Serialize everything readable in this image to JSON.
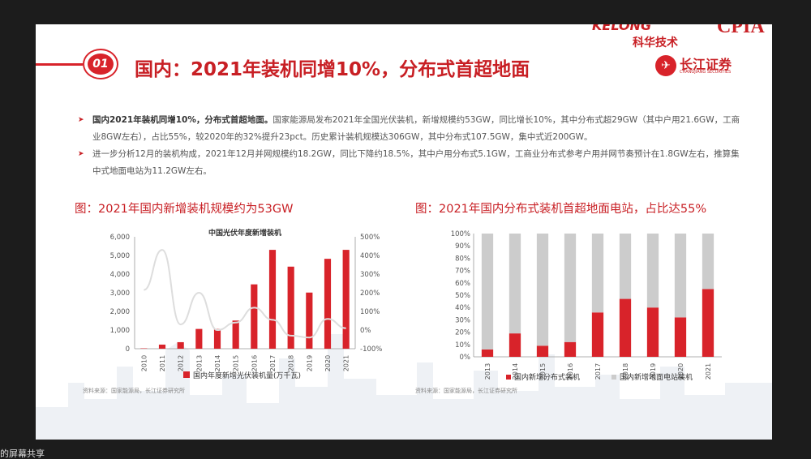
{
  "slide": {
    "section_no": "01",
    "title": "国内：2021年装机同增10%，分布式首超地面",
    "logos": {
      "kelong_en": "KELONG",
      "kelong_cn": "科华技术",
      "cpia": "CPIA",
      "cj_cn": "长江证券",
      "cj_en": "CHANGJIANG SECURITIES"
    },
    "bullets": [
      {
        "bold": "国内2021年装机同增10%，分布式首超地面。",
        "text": "国家能源局发布2021年全国光伏装机，新增规模约53GW，同比增长10%，其中分布式超29GW（其中户用21.6GW，工商业8GW左右），占比55%，较2020年的32%提升23pct。历史累计装机规模达306GW，其中分布式107.5GW，集中式近200GW。"
      },
      {
        "bold": "",
        "text": "进一步分析12月的装机构成，2021年12月并网规模约18.2GW，同比下降约18.5%，其中户用分布式5.1GW，工商业分布式参考户用并网节奏预计在1.8GW左右，推算集中式地面电站为11.2GW左右。"
      }
    ],
    "chart1_caption": "图：2021年国内新增装机规模约为53GW",
    "chart2_caption": "图：2021年国内分布式装机首超地面电站，占比达55%",
    "source1": "资料来源：国家能源局，长江证券研究所",
    "source2": "资料来源：国家能源局，长江证券研究所"
  },
  "bottom_text": "的屏幕共享",
  "chart_data": [
    {
      "type": "bar",
      "title": "中国光伏年度新增装机",
      "categories": [
        "2010",
        "2011",
        "2012",
        "2013",
        "2014",
        "2015",
        "2016",
        "2017",
        "2018",
        "2019",
        "2020",
        "2021"
      ],
      "series": [
        {
          "name": "国内年度新增光伏装机量(万千瓦)",
          "values": [
            20,
            220,
            350,
            1060,
            1060,
            1510,
            3450,
            5300,
            4400,
            3010,
            4820,
            5300
          ],
          "color": "#d8232a",
          "axis": "left"
        },
        {
          "name": "",
          "values": [
            215,
            430,
            30,
            200,
            0,
            40,
            120,
            55,
            -30,
            -40,
            60,
            10
          ],
          "color": "#dddddd",
          "axis": "right",
          "kind": "line"
        }
      ],
      "ylim": [
        0,
        6000
      ],
      "yticks": [
        "0",
        "1,000",
        "2,000",
        "3,000",
        "4,000",
        "5,000",
        "6,000"
      ],
      "y2lim": [
        -100,
        500
      ],
      "y2ticks": [
        "-100%",
        "0%",
        "100%",
        "200%",
        "300%",
        "400%",
        "500%"
      ],
      "legend": "bottom"
    },
    {
      "type": "bar",
      "stacked": true,
      "categories": [
        "2013",
        "2014",
        "2015",
        "2016",
        "2017",
        "2018",
        "2019",
        "2020",
        "2021"
      ],
      "series": [
        {
          "name": "国内新增分布式装机",
          "values": [
            6,
            19,
            9,
            12,
            36,
            47,
            40,
            32,
            55
          ],
          "color": "#d8232a"
        },
        {
          "name": "国内新增地面电站装机",
          "values": [
            94,
            81,
            91,
            88,
            64,
            53,
            60,
            68,
            45
          ],
          "color": "#cccccc"
        }
      ],
      "ylim": [
        0,
        100
      ],
      "yticks": [
        "0%",
        "10%",
        "20%",
        "30%",
        "40%",
        "50%",
        "60%",
        "70%",
        "80%",
        "90%",
        "100%"
      ],
      "legend": "bottom"
    }
  ]
}
